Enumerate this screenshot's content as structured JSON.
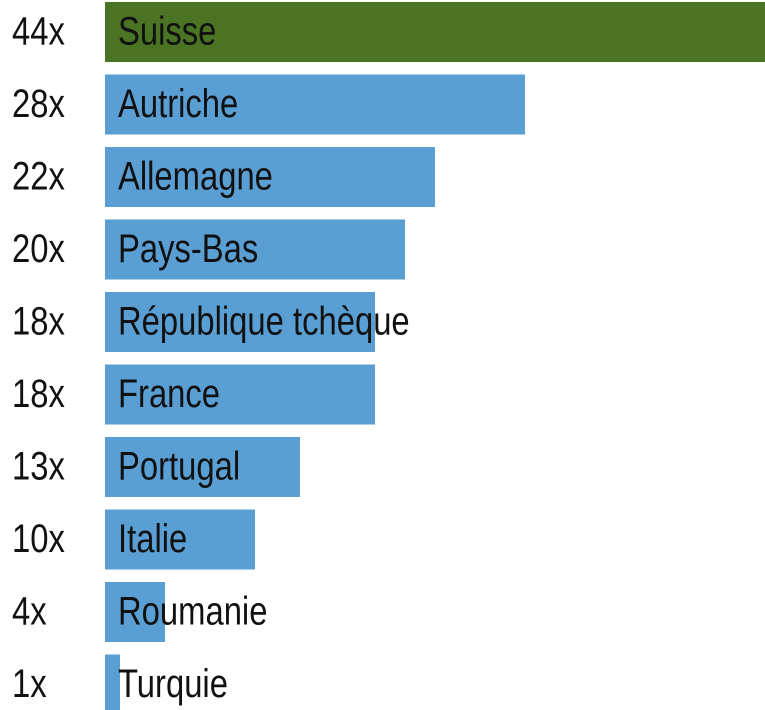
{
  "chart_data": {
    "type": "hbar",
    "categories": [
      "Suisse",
      "Autriche",
      "Allemagne",
      "Pays-Bas",
      "République tchèque",
      "France",
      "Portugal",
      "Italie",
      "Roumanie",
      "Turquie"
    ],
    "values": [
      44,
      28,
      22,
      20,
      18,
      18,
      13,
      10,
      4,
      1
    ],
    "value_labels": [
      "44x",
      "28x",
      "22x",
      "20x",
      "18x",
      "18x",
      "13x",
      "10x",
      "4x",
      "1x"
    ],
    "colors": [
      "#4a7424",
      "#5a9fd3",
      "#5a9fd3",
      "#5a9fd3",
      "#5a9fd3",
      "#5a9fd3",
      "#5a9fd3",
      "#5a9fd3",
      "#5a9fd3",
      "#5a9fd3"
    ]
  }
}
